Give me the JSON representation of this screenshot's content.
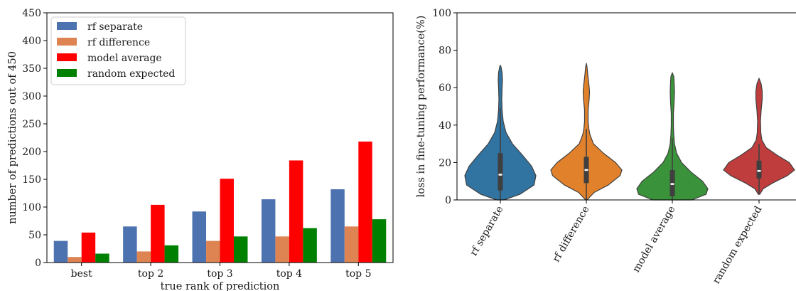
{
  "chart_data": [
    {
      "type": "bar",
      "xlabel": "true rank of prediction",
      "ylabel": "number of predictions out of 450",
      "ylim": [
        0,
        450
      ],
      "yticks": [
        0,
        50,
        100,
        150,
        200,
        250,
        300,
        350,
        400,
        450
      ],
      "categories": [
        "best",
        "top 2",
        "top 3",
        "top 4",
        "top 5"
      ],
      "legend_position": "top-left",
      "series": [
        {
          "name": "rf separate",
          "color": "#4c72b0",
          "values": [
            39,
            65,
            92,
            114,
            132
          ]
        },
        {
          "name": "rf difference",
          "color": "#dd8452",
          "values": [
            10,
            20,
            39,
            47,
            65
          ]
        },
        {
          "name": "model average",
          "color": "#ff0000",
          "values": [
            54,
            104,
            151,
            184,
            218
          ]
        },
        {
          "name": "random expected",
          "color": "#008000",
          "values": [
            16,
            31,
            47,
            62,
            78
          ]
        }
      ]
    },
    {
      "type": "violin",
      "ylabel": "loss in fine-tuning performance(%)",
      "ylim": [
        0,
        100
      ],
      "yticks": [
        0,
        20,
        40,
        60,
        80,
        100
      ],
      "categories": [
        "rf separate",
        "rf difference",
        "model average",
        "random expected"
      ],
      "series": [
        {
          "name": "rf separate",
          "color": "#3274a1",
          "min": 0,
          "q1": 5,
          "median": 13.5,
          "q3": 25,
          "whisker_high": 49,
          "max": 72,
          "profile": [
            [
              0,
              0.1
            ],
            [
              3,
              0.55
            ],
            [
              8,
              0.95
            ],
            [
              13,
              1.0
            ],
            [
              18,
              0.88
            ],
            [
              24,
              0.62
            ],
            [
              30,
              0.34
            ],
            [
              36,
              0.16
            ],
            [
              42,
              0.08
            ],
            [
              48,
              0.05
            ],
            [
              54,
              0.04
            ],
            [
              60,
              0.05
            ],
            [
              64,
              0.06
            ],
            [
              68,
              0.05
            ],
            [
              71,
              0.02
            ],
            [
              72,
              0
            ]
          ]
        },
        {
          "name": "rf difference",
          "color": "#e1812c",
          "min": 0,
          "q1": 9,
          "median": 16,
          "q3": 23,
          "whisker_high": 38,
          "max": 73,
          "profile": [
            [
              0,
              0.02
            ],
            [
              4,
              0.22
            ],
            [
              8,
              0.62
            ],
            [
              13,
              0.95
            ],
            [
              16,
              1.0
            ],
            [
              20,
              0.82
            ],
            [
              25,
              0.48
            ],
            [
              30,
              0.2
            ],
            [
              35,
              0.1
            ],
            [
              38,
              0.07
            ],
            [
              42,
              0.05
            ],
            [
              48,
              0.05
            ],
            [
              54,
              0.08
            ],
            [
              58,
              0.09
            ],
            [
              62,
              0.07
            ],
            [
              67,
              0.04
            ],
            [
              71,
              0.02
            ],
            [
              73,
              0
            ]
          ]
        },
        {
          "name": "model average",
          "color": "#3a923a",
          "min": 0,
          "q1": 2,
          "median": 8.5,
          "q3": 16,
          "whisker_high": 33,
          "max": 68,
          "profile": [
            [
              0,
              0.55
            ],
            [
              3,
              0.95
            ],
            [
              6,
              1.0
            ],
            [
              10,
              0.85
            ],
            [
              15,
              0.52
            ],
            [
              20,
              0.26
            ],
            [
              25,
              0.12
            ],
            [
              30,
              0.06
            ],
            [
              35,
              0.04
            ],
            [
              40,
              0.03
            ],
            [
              46,
              0.03
            ],
            [
              52,
              0.05
            ],
            [
              58,
              0.06
            ],
            [
              63,
              0.05
            ],
            [
              66,
              0.04
            ],
            [
              68,
              0
            ]
          ]
        },
        {
          "name": "random expected",
          "color": "#c03d3e",
          "min": 3,
          "q1": 11.5,
          "median": 15.5,
          "q3": 21,
          "whisker_high": 30,
          "max": 65,
          "profile": [
            [
              3,
              0.02
            ],
            [
              6,
              0.12
            ],
            [
              9,
              0.38
            ],
            [
              13,
              0.8
            ],
            [
              16,
              1.0
            ],
            [
              20,
              0.85
            ],
            [
              24,
              0.5
            ],
            [
              28,
              0.2
            ],
            [
              32,
              0.08
            ],
            [
              36,
              0.05
            ],
            [
              42,
              0.04
            ],
            [
              48,
              0.06
            ],
            [
              54,
              0.09
            ],
            [
              58,
              0.09
            ],
            [
              62,
              0.06
            ],
            [
              65,
              0
            ]
          ]
        }
      ]
    }
  ]
}
